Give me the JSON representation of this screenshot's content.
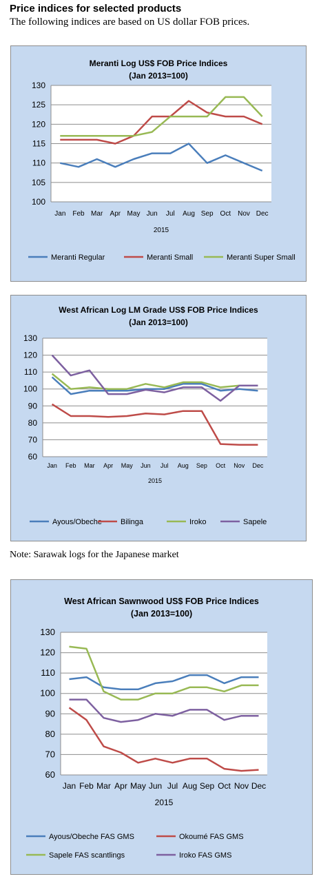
{
  "page": {
    "heading": "Price indices for selected products",
    "intro": "The following indices are based on US dollar FOB prices.",
    "note": "Note: Sarawak logs for the Japanese market"
  },
  "colors": {
    "panel_bg": "#c6d9f0",
    "blue": "#4a7ebb",
    "red": "#be4b48",
    "green": "#98b954",
    "purple": "#7d60a0"
  },
  "chart_data": [
    {
      "type": "line",
      "title": "Meranti Log US$ FOB Price Indices",
      "subtitle": "(Jan 2013=100)",
      "xlabel": "2015",
      "categories": [
        "Jan",
        "Feb",
        "Mar",
        "Apr",
        "May",
        "Jun",
        "Jul",
        "Aug",
        "Sep",
        "Oct",
        "Nov",
        "Dec"
      ],
      "ylim": [
        100,
        130
      ],
      "yticks": [
        100,
        105,
        110,
        115,
        120,
        125,
        130
      ],
      "grid": true,
      "legend": "bottom",
      "series": [
        {
          "name": "Meranti Regular",
          "color": "#4a7ebb",
          "values": [
            110,
            109,
            111,
            109,
            111,
            112.5,
            112.5,
            115,
            110,
            112,
            110,
            108
          ]
        },
        {
          "name": "Meranti Small",
          "color": "#be4b48",
          "values": [
            116,
            116,
            116,
            115,
            117,
            122,
            122,
            126,
            123,
            122,
            122,
            120
          ]
        },
        {
          "name": "Meranti Super Small",
          "color": "#98b954",
          "values": [
            117,
            117,
            117,
            117,
            117,
            118,
            122,
            122,
            122,
            127,
            127,
            122
          ]
        }
      ]
    },
    {
      "type": "line",
      "title": "West African Log LM Grade US$ FOB Price Indices",
      "subtitle": "(Jan 2013=100)",
      "xlabel": "2015",
      "categories": [
        "Jan",
        "Feb",
        "Mar",
        "Apr",
        "May",
        "Jun",
        "Jul",
        "Aug",
        "Sep",
        "Oct",
        "Nov",
        "Dec"
      ],
      "ylim": [
        60,
        130
      ],
      "yticks": [
        60,
        70,
        80,
        90,
        100,
        110,
        120,
        130
      ],
      "grid": true,
      "legend": "bottom",
      "series": [
        {
          "name": "Ayous/Obeche",
          "color": "#4a7ebb",
          "values": [
            107,
            97,
            99,
            99,
            99,
            100,
            100,
            103,
            103,
            99,
            100,
            99
          ]
        },
        {
          "name": "Bilinga",
          "color": "#be4b48",
          "values": [
            91,
            84,
            84,
            83.5,
            84,
            85.5,
            85,
            87,
            87,
            67.5,
            67,
            67
          ]
        },
        {
          "name": "Iroko",
          "color": "#98b954",
          "values": [
            109,
            100,
            101,
            100,
            100,
            103,
            101,
            104,
            104,
            101,
            102,
            102
          ]
        },
        {
          "name": "Sapele",
          "color": "#7d60a0",
          "values": [
            120,
            108,
            111,
            97,
            97,
            99.5,
            98,
            101,
            101,
            93,
            102,
            102
          ]
        }
      ]
    },
    {
      "type": "line",
      "title": "West African Sawnwood US$ FOB Price Indices",
      "subtitle": "(Jan 2013=100)",
      "xlabel": "2015",
      "categories": [
        "Jan",
        "Feb",
        "Mar",
        "Apr",
        "May",
        "Jun",
        "Jul",
        "Aug",
        "Sep",
        "Oct",
        "Nov",
        "Dec"
      ],
      "ylim": [
        60,
        130
      ],
      "yticks": [
        60,
        70,
        80,
        90,
        100,
        110,
        120,
        130
      ],
      "grid": true,
      "legend": "bottom",
      "series": [
        {
          "name": "Ayous/Obeche  FAS GMS",
          "color": "#4a7ebb",
          "values": [
            107,
            108,
            103,
            102,
            102,
            105,
            106,
            109,
            109,
            105,
            108,
            108
          ]
        },
        {
          "name": "Okoumé  FAS GMS",
          "color": "#be4b48",
          "values": [
            93,
            87,
            74,
            71,
            66,
            68,
            66,
            68,
            68,
            63,
            62,
            62.5
          ]
        },
        {
          "name": "Sapele FAS scantlings",
          "color": "#98b954",
          "values": [
            123,
            122,
            101,
            97,
            97,
            100,
            100,
            103,
            103,
            101,
            104,
            104
          ]
        },
        {
          "name": "Iroko FAS GMS",
          "color": "#7d60a0",
          "values": [
            97,
            97,
            88,
            86,
            87,
            90,
            89,
            92,
            92,
            87,
            89,
            89
          ]
        }
      ]
    }
  ]
}
